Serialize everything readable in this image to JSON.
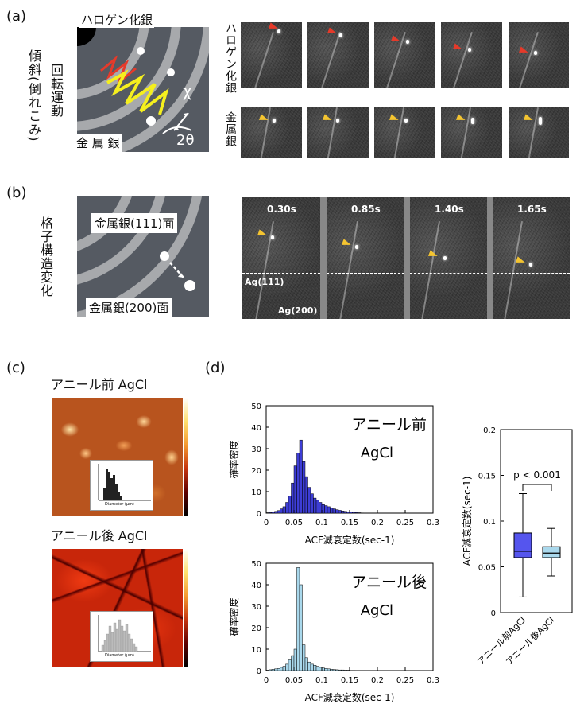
{
  "panels": {
    "a": {
      "label": "(a)",
      "motion_label_1": "傾斜(倒れこみ)",
      "motion_label_2": "回転運動",
      "schematic_top_label": "ハロゲン化銀",
      "schematic_bottom_label": "金 属 銀",
      "chi_symbol": "χ",
      "two_theta_symbol": "2θ",
      "row1_label": "ハロゲン化銀",
      "row2_label": "金属銀"
    },
    "b": {
      "label": "(b)",
      "side_label": "格子構造変化",
      "schematic_top_label": "金属銀(111)面",
      "schematic_bottom_label": "金属銀(200)面",
      "times": [
        "0.30s",
        "0.85s",
        "1.40s",
        "1.65s"
      ],
      "row1_label": "Ag(111)",
      "row2_label": "Ag(200)"
    },
    "c": {
      "label": "(c)",
      "top_title": "アニール前 AgCl",
      "bottom_title": "アニール後 AgCl",
      "afm_top_axis": [
        "0.0 µm",
        "1.0",
        "1.5"
      ],
      "afm_side_axis": [
        "0.0",
        "0.5",
        "1.0",
        "1.5",
        "2.0"
      ],
      "colorbar_ticks": [
        "150 nm",
        "140",
        "130",
        "120",
        "110",
        "100",
        "90",
        "80",
        "70",
        "60",
        "50",
        "40",
        "30",
        "20",
        "10",
        "0"
      ],
      "inset_ylabel": "Norm. Freq.",
      "inset_xlabel": "Diameter (µm)",
      "inset_xticks": [
        "0",
        "0.5",
        "1",
        "1.5",
        "2"
      ]
    },
    "d": {
      "label": "(d)"
    }
  },
  "chart_data": [
    {
      "type": "bar",
      "title": "アニール前",
      "subtitle": "AgCl",
      "xlabel": "ACF減衰定数(sec-1)",
      "ylabel": "確率密度",
      "xlim": [
        0,
        0.3
      ],
      "ylim": [
        0,
        50
      ],
      "xticks": [
        0,
        0.05,
        0.1,
        0.15,
        0.2,
        0.25,
        0.3
      ],
      "yticks": [
        0,
        10,
        20,
        30,
        40,
        50
      ],
      "color": "#3d3dd6",
      "bin_width": 0.005,
      "bin_starts": [
        0.0,
        0.005,
        0.01,
        0.015,
        0.02,
        0.025,
        0.03,
        0.035,
        0.04,
        0.045,
        0.05,
        0.055,
        0.06,
        0.065,
        0.07,
        0.075,
        0.08,
        0.085,
        0.09,
        0.095,
        0.1,
        0.105,
        0.11,
        0.115,
        0.12,
        0.125,
        0.13,
        0.135,
        0.14,
        0.145,
        0.15,
        0.155,
        0.16,
        0.165,
        0.17
      ],
      "values": [
        0.2,
        0.3,
        0.5,
        0.8,
        1.2,
        2,
        3,
        5,
        8,
        14,
        22,
        28,
        34,
        24,
        17,
        12,
        9,
        7,
        6,
        5,
        4,
        3.5,
        3,
        2.5,
        2,
        1.6,
        1.3,
        1,
        0.8,
        0.6,
        0.5,
        0.4,
        0.3,
        0.2,
        0.1
      ]
    },
    {
      "type": "bar",
      "title": "アニール後",
      "subtitle": "AgCl",
      "xlabel": "ACF減衰定数(sec-1)",
      "ylabel": "確率密度",
      "xlim": [
        0,
        0.3
      ],
      "ylim": [
        0,
        50
      ],
      "xticks": [
        0,
        0.05,
        0.1,
        0.15,
        0.2,
        0.25,
        0.3
      ],
      "yticks": [
        0,
        10,
        20,
        30,
        40,
        50
      ],
      "color": "#a9d8ec",
      "bin_width": 0.005,
      "bin_starts": [
        0.0,
        0.005,
        0.01,
        0.015,
        0.02,
        0.025,
        0.03,
        0.035,
        0.04,
        0.045,
        0.05,
        0.055,
        0.06,
        0.065,
        0.07,
        0.075,
        0.08,
        0.085,
        0.09,
        0.095,
        0.1,
        0.105,
        0.11,
        0.115,
        0.12,
        0.125,
        0.13,
        0.135,
        0.14,
        0.145,
        0.15,
        0.155
      ],
      "values": [
        0.2,
        0.4,
        0.6,
        0.8,
        1,
        1.5,
        2,
        3,
        5,
        7,
        10,
        48,
        40,
        12,
        6,
        4,
        3,
        2.5,
        2,
        1.5,
        1.2,
        1,
        0.8,
        0.6,
        0.5,
        0.4,
        0.3,
        0.3,
        0.2,
        0.2,
        0.1,
        0.1
      ]
    },
    {
      "type": "box",
      "ylabel": "ACF減衰定数(sec-1)",
      "ylim": [
        0,
        0.2
      ],
      "yticks": [
        0,
        0.05,
        0.1,
        0.15,
        0.2
      ],
      "categories": [
        "アニール前AgCl",
        "アニール後AgCl"
      ],
      "boxes": [
        {
          "min": 0.017,
          "q1": 0.06,
          "median": 0.067,
          "q3": 0.087,
          "max": 0.13,
          "color": "#5555ee"
        },
        {
          "min": 0.04,
          "q1": 0.06,
          "median": 0.065,
          "q3": 0.072,
          "max": 0.092,
          "color": "#a9d8ec"
        }
      ],
      "annotation": "p < 0.001"
    }
  ]
}
